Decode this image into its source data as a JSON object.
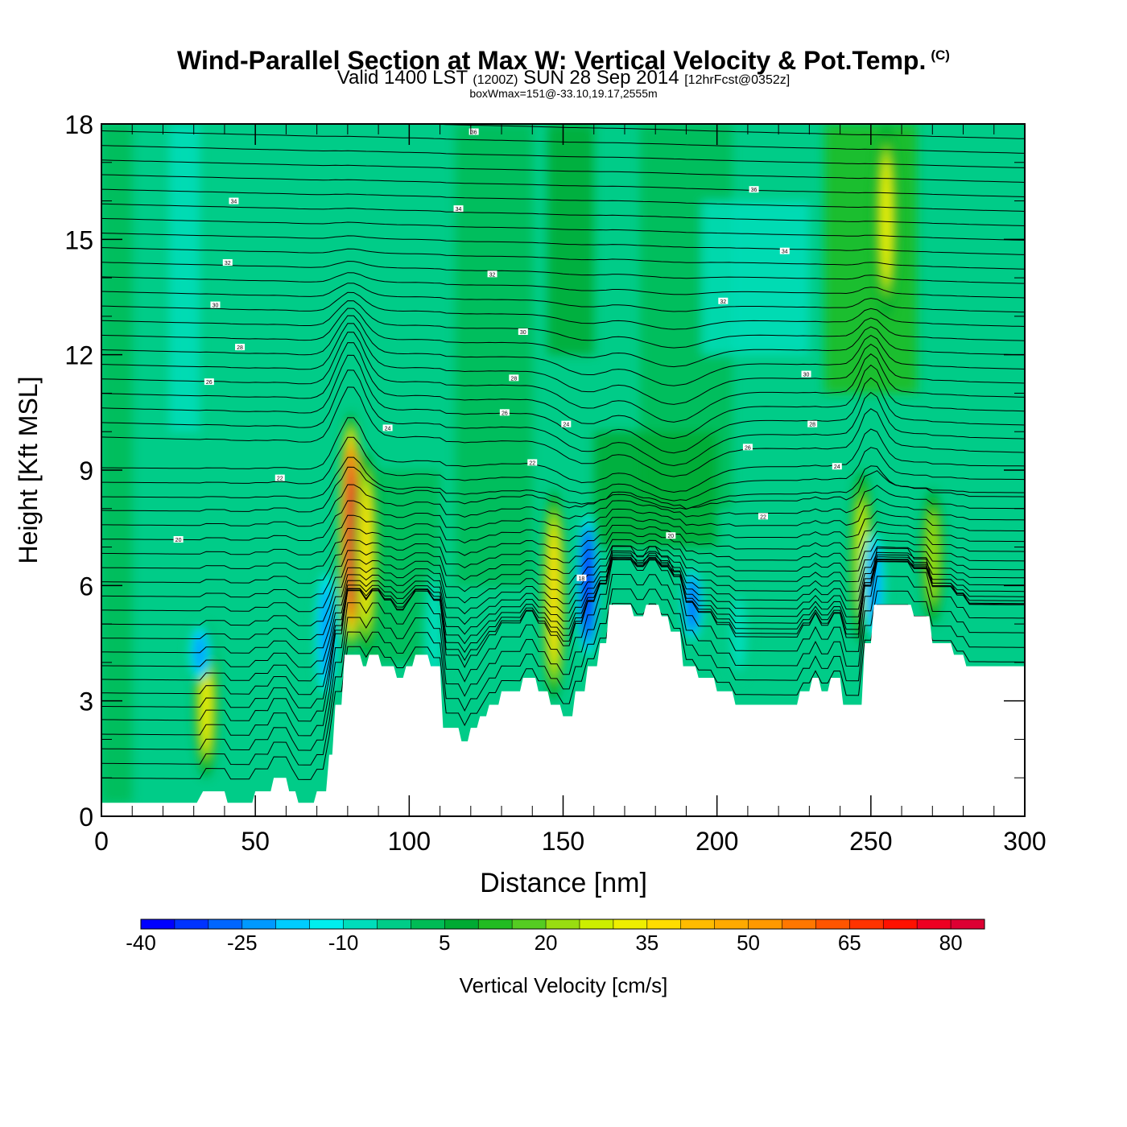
{
  "header": {
    "title": "Wind-Parallel Section at Max W: Vertical Velocity & Pot.Temp.",
    "copyright": "(C)",
    "subtitle_main_a": "Valid 1400 LST",
    "subtitle_utc": "(1200Z)",
    "subtitle_main_b": "SUN 28 Sep 2014",
    "subtitle_fcst": "[12hrFcst@0352z]",
    "info": "boxWmax=151@-33.10,19.17,2555m"
  },
  "chart_data": {
    "type": "heatmap",
    "title": "Wind-Parallel Section at Max W: Vertical Velocity & Pot.Temp.",
    "xlabel": "Distance [nm]",
    "ylabel": "Height [Kft MSL]",
    "xlim": [
      0,
      300
    ],
    "ylim": [
      0,
      18
    ],
    "xticks": [
      "0",
      "50",
      "100",
      "150",
      "200",
      "250",
      "300"
    ],
    "yticks": [
      "0",
      "3",
      "6",
      "9",
      "12",
      "15",
      "18"
    ],
    "grid": false,
    "colorbar": {
      "label": "Vertical Velocity [cm/s]",
      "tick_labels": [
        "-40",
        "-25",
        "-10",
        "5",
        "20",
        "35",
        "50",
        "65",
        "80"
      ],
      "levels": [
        -40,
        -35,
        -30,
        -25,
        -20,
        -15,
        -10,
        -5,
        0,
        5,
        10,
        15,
        20,
        25,
        30,
        35,
        40,
        45,
        50,
        55,
        60,
        65,
        70,
        75,
        80,
        85
      ],
      "colors": [
        "#0000ff",
        "#0033ff",
        "#0066ff",
        "#0099ff",
        "#00ccff",
        "#00eeee",
        "#00ddbb",
        "#00cc88",
        "#00bb55",
        "#00aa33",
        "#22bb22",
        "#55cc22",
        "#99dd11",
        "#ccee00",
        "#eeee00",
        "#ffdd00",
        "#ffbb00",
        "#ffaa00",
        "#ff9900",
        "#ff7700",
        "#ff5500",
        "#ff3300",
        "#ff1100",
        "#ee0022",
        "#dd0033"
      ]
    },
    "vertical_velocity_features": [
      {
        "x": 34,
        "z_bottom": 1.0,
        "z_top": 5.0,
        "w": 30
      },
      {
        "x": 32,
        "z_bottom": 3.5,
        "z_top": 5.0,
        "w": -25
      },
      {
        "x": 73,
        "z_bottom": 3.0,
        "z_top": 6.5,
        "w": -25
      },
      {
        "x": 81,
        "z_bottom": 4.2,
        "z_top": 10.5,
        "w": 80
      },
      {
        "x": 86,
        "z_bottom": 4.2,
        "z_top": 9.5,
        "w": 35
      },
      {
        "x": 108,
        "z_bottom": 3.0,
        "z_top": 6.5,
        "w": -10
      },
      {
        "x": 147,
        "z_bottom": 3.0,
        "z_top": 8.5,
        "w": 35
      },
      {
        "x": 158,
        "z_bottom": 4.0,
        "z_top": 8.0,
        "w": -40
      },
      {
        "x": 192,
        "z_bottom": 4.5,
        "z_top": 6.5,
        "w": -30
      },
      {
        "x": 207,
        "z_bottom": 3.5,
        "z_top": 6.0,
        "w": -10
      },
      {
        "x": 247,
        "z_bottom": 4.5,
        "z_top": 9.0,
        "w": 25
      },
      {
        "x": 251,
        "z_bottom": 4.5,
        "z_top": 7.5,
        "w": -25
      },
      {
        "x": 270,
        "z_bottom": 5.0,
        "z_top": 8.5,
        "w": 20
      },
      {
        "x": 255,
        "z_bottom": 13.0,
        "z_top": 18.0,
        "w": 30
      }
    ],
    "terrain": {
      "x": [
        0,
        30,
        31,
        33,
        40,
        41,
        49,
        50,
        55,
        56,
        60,
        61,
        63,
        64,
        69,
        70,
        73,
        74,
        75,
        76,
        78,
        79,
        84,
        85,
        86,
        87,
        90,
        91,
        95,
        96,
        98,
        99,
        101,
        102,
        106,
        107,
        110,
        111,
        116,
        117,
        119,
        120,
        122,
        123,
        125,
        126,
        129,
        130,
        136,
        137,
        141,
        142,
        145,
        146,
        149,
        150,
        153,
        154,
        157,
        158,
        161,
        162,
        164,
        165,
        172,
        173,
        176,
        177,
        181,
        182,
        184,
        185,
        188,
        189,
        193,
        194,
        199,
        200,
        205,
        206,
        226,
        227,
        230,
        231,
        233,
        234,
        236,
        237,
        240,
        241,
        247,
        248,
        250,
        251,
        263,
        264,
        269,
        270,
        276,
        277,
        280,
        281,
        300
      ],
      "z": [
        0.35,
        0.35,
        0.35,
        0.65,
        0.65,
        0.35,
        0.35,
        0.65,
        0.65,
        1.0,
        1.0,
        0.65,
        0.65,
        0.35,
        0.35,
        0.65,
        0.65,
        1.6,
        1.6,
        2.9,
        2.9,
        4.2,
        4.2,
        3.9,
        3.9,
        4.2,
        4.2,
        3.9,
        3.9,
        3.6,
        3.6,
        3.9,
        3.9,
        4.2,
        4.2,
        3.9,
        3.9,
        2.3,
        2.3,
        1.95,
        1.95,
        2.3,
        2.3,
        2.6,
        2.6,
        2.9,
        2.9,
        3.25,
        3.25,
        3.6,
        3.6,
        3.25,
        3.25,
        2.9,
        2.9,
        2.6,
        2.6,
        3.25,
        3.25,
        3.9,
        3.9,
        4.5,
        4.5,
        5.5,
        5.5,
        5.2,
        5.2,
        5.5,
        5.5,
        5.2,
        5.2,
        4.8,
        4.8,
        3.9,
        3.9,
        3.6,
        3.6,
        3.25,
        3.25,
        2.9,
        2.9,
        3.25,
        3.25,
        3.6,
        3.6,
        3.25,
        3.25,
        3.6,
        3.6,
        2.9,
        2.9,
        4.5,
        4.5,
        5.5,
        5.5,
        5.2,
        5.2,
        4.5,
        4.5,
        4.2,
        4.2,
        3.9,
        3.9
      ]
    },
    "potential_temperature": {
      "description_levels": "Isentropes every 1 K; contour labels in K (last two digits)",
      "contour_labels": [
        {
          "text": "36",
          "x": 121,
          "z": 17.8
        },
        {
          "text": "34",
          "x": 43,
          "z": 16.0
        },
        {
          "text": "34",
          "x": 116,
          "z": 15.8
        },
        {
          "text": "36",
          "x": 212,
          "z": 16.3
        },
        {
          "text": "34",
          "x": 222,
          "z": 14.7
        },
        {
          "text": "32",
          "x": 41,
          "z": 14.4
        },
        {
          "text": "32",
          "x": 127,
          "z": 14.1
        },
        {
          "text": "32",
          "x": 202,
          "z": 13.4
        },
        {
          "text": "30",
          "x": 37,
          "z": 13.3
        },
        {
          "text": "30",
          "x": 137,
          "z": 12.6
        },
        {
          "text": "28",
          "x": 45,
          "z": 12.2
        },
        {
          "text": "28",
          "x": 134,
          "z": 11.4
        },
        {
          "text": "30",
          "x": 229,
          "z": 11.5
        },
        {
          "text": "26",
          "x": 35,
          "z": 11.3
        },
        {
          "text": "26",
          "x": 131,
          "z": 10.5
        },
        {
          "text": "24",
          "x": 151,
          "z": 10.2
        },
        {
          "text": "24",
          "x": 93,
          "z": 10.1
        },
        {
          "text": "28",
          "x": 231,
          "z": 10.2
        },
        {
          "text": "26",
          "x": 210,
          "z": 9.6
        },
        {
          "text": "22",
          "x": 140,
          "z": 9.2
        },
        {
          "text": "24",
          "x": 239,
          "z": 9.1
        },
        {
          "text": "22",
          "x": 58,
          "z": 8.8
        },
        {
          "text": "22",
          "x": 215,
          "z": 7.8
        },
        {
          "text": "20",
          "x": 25,
          "z": 7.2
        },
        {
          "text": "20",
          "x": 185,
          "z": 7.3
        },
        {
          "text": "18",
          "x": 156,
          "z": 6.2
        }
      ]
    }
  }
}
